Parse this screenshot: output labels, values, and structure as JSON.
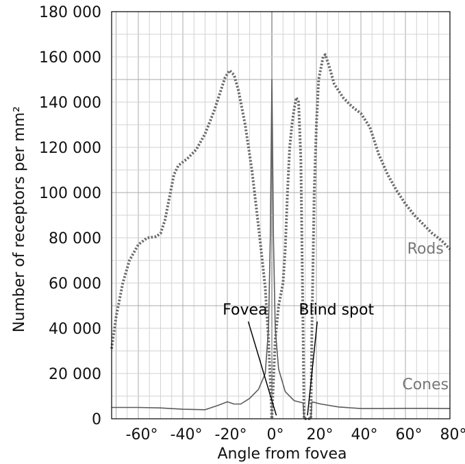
{
  "chart_data": {
    "type": "line",
    "xlabel": "Angle from fovea",
    "ylabel": "Number of receptors per mm²",
    "xlim": [
      -72,
      80
    ],
    "ylim": [
      0,
      180000
    ],
    "x_ticks": [
      "-60°",
      "-40°",
      "-20°",
      "0°",
      "20°",
      "40°",
      "60°",
      "80°"
    ],
    "y_ticks": [
      "0",
      "20 000",
      "40 000",
      "60 000",
      "80 000",
      "100 000",
      "120 000",
      "140 000",
      "160 000",
      "180 000"
    ],
    "grid": true,
    "series": [
      {
        "name": "Rods",
        "style": "dotted",
        "points": [
          [
            -72,
            31000
          ],
          [
            -70,
            45000
          ],
          [
            -67,
            60000
          ],
          [
            -64,
            70000
          ],
          [
            -60,
            77000
          ],
          [
            -56,
            80000
          ],
          [
            -52,
            80500
          ],
          [
            -50,
            82000
          ],
          [
            -48,
            88000
          ],
          [
            -46,
            98000
          ],
          [
            -44,
            108000
          ],
          [
            -42,
            112000
          ],
          [
            -38,
            115000
          ],
          [
            -34,
            119000
          ],
          [
            -30,
            126000
          ],
          [
            -26,
            136000
          ],
          [
            -23,
            145000
          ],
          [
            -21,
            151000
          ],
          [
            -19,
            154000
          ],
          [
            -17,
            152000
          ],
          [
            -15,
            145000
          ],
          [
            -12,
            130000
          ],
          [
            -9,
            110000
          ],
          [
            -6,
            85000
          ],
          [
            -3,
            58000
          ],
          [
            -1.5,
            35000
          ],
          [
            -0.5,
            12000
          ],
          [
            0,
            0
          ],
          [
            0.5,
            12000
          ],
          [
            1.5,
            35000
          ],
          [
            3,
            50000
          ],
          [
            5,
            60000
          ],
          [
            6,
            75000
          ],
          [
            7,
            100000
          ],
          [
            8,
            120000
          ],
          [
            9,
            130000
          ],
          [
            10,
            137000
          ],
          [
            11,
            142000
          ],
          [
            12,
            140000
          ],
          [
            13,
            115000
          ],
          [
            14,
            40000
          ],
          [
            14.5,
            0
          ],
          [
            17.5,
            0
          ],
          [
            18,
            40000
          ],
          [
            19,
            100000
          ],
          [
            20,
            130000
          ],
          [
            21,
            150000
          ],
          [
            23,
            160000
          ],
          [
            24,
            161000
          ],
          [
            26,
            155000
          ],
          [
            28,
            148000
          ],
          [
            32,
            142000
          ],
          [
            36,
            138000
          ],
          [
            40,
            135000
          ],
          [
            44,
            129000
          ],
          [
            48,
            117000
          ],
          [
            52,
            108000
          ],
          [
            56,
            101000
          ],
          [
            60,
            95000
          ],
          [
            64,
            90000
          ],
          [
            68,
            86000
          ],
          [
            72,
            82000
          ],
          [
            76,
            79000
          ],
          [
            80,
            75000
          ]
        ]
      },
      {
        "name": "Cones",
        "style": "solid",
        "points": [
          [
            -72,
            5000
          ],
          [
            -60,
            5000
          ],
          [
            -50,
            4800
          ],
          [
            -40,
            4200
          ],
          [
            -30,
            4000
          ],
          [
            -24,
            6000
          ],
          [
            -20,
            7500
          ],
          [
            -17,
            6500
          ],
          [
            -14,
            6500
          ],
          [
            -10,
            9000
          ],
          [
            -6,
            13000
          ],
          [
            -3,
            20000
          ],
          [
            -1.5,
            40000
          ],
          [
            -0.7,
            80000
          ],
          [
            -0.3,
            120000
          ],
          [
            0,
            150000
          ],
          [
            0.3,
            120000
          ],
          [
            0.7,
            80000
          ],
          [
            1.5,
            40000
          ],
          [
            3,
            22000
          ],
          [
            6,
            12000
          ],
          [
            10,
            8000
          ],
          [
            14,
            7000
          ],
          [
            14.5,
            0
          ],
          [
            17.5,
            0
          ],
          [
            18,
            7500
          ],
          [
            22,
            6500
          ],
          [
            30,
            5200
          ],
          [
            40,
            4500
          ],
          [
            50,
            4500
          ],
          [
            60,
            4600
          ],
          [
            70,
            4600
          ],
          [
            80,
            4500
          ]
        ]
      }
    ],
    "annotations": [
      {
        "text": "Fovea",
        "x": -2,
        "y": 46000,
        "target": [
          2,
          1500
        ],
        "anchor": "end"
      },
      {
        "text": "Blind spot",
        "x": 29,
        "y": 46000,
        "target": [
          16,
          1500
        ],
        "anchor": "middle"
      }
    ],
    "series_labels": [
      {
        "text": "Rods",
        "x": 69,
        "y": 73000
      },
      {
        "text": "Cones",
        "x": 69,
        "y": 13000
      }
    ]
  }
}
